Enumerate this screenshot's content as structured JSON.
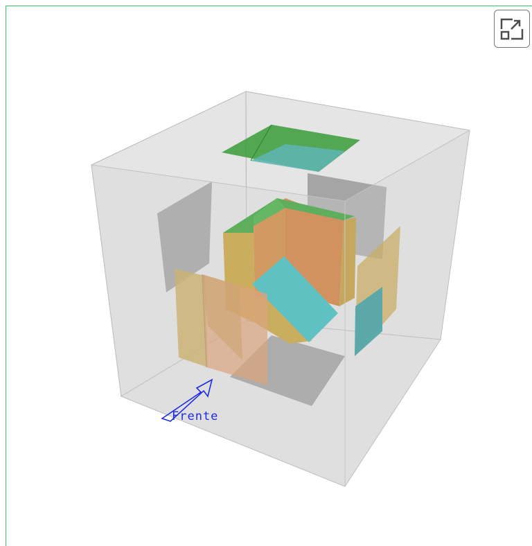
{
  "scene": {
    "front_label": "Frente"
  },
  "controls": {
    "fullscreen_icon": "expand-icon"
  },
  "colors": {
    "frame_border": "#39c16a",
    "cube_fill": "#c9c9c9",
    "green": "#2e9b2e",
    "orange": "#c8722a",
    "ochre": "#c9a02a",
    "cyan": "#22b3b8",
    "gray_panel": "#8f8f8f",
    "arrow": "#1e2be0"
  }
}
